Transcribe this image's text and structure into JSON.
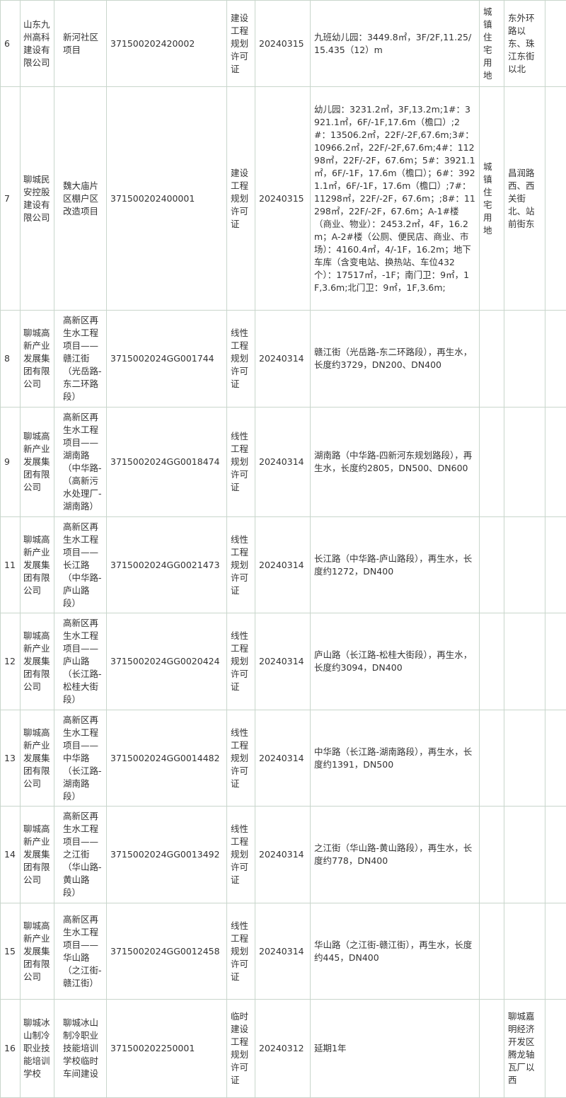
{
  "table": {
    "rows": [
      {
        "no": "6",
        "company": "山东九州高科建设有限公司",
        "project": "新河社区项目",
        "permit_no": "371500202420002",
        "permit_type": "建设工程规划许可证",
        "date": "20240315",
        "content": "九班幼儿园：3449.8㎡，3F/2F,11.25/15.435（12）m",
        "land_use": "城镇住宅用地",
        "location": "东外环路以东、珠江东街以北"
      },
      {
        "no": "7",
        "company": "聊城民安控股建设有限公司",
        "project": "魏大庙片区棚户区改造项目",
        "permit_no": "371500202400001",
        "permit_type": "建设工程规划许可证",
        "date": "20240315",
        "content": "幼儿园：3231.2㎡，3F,13.2m;1#：3921.1㎡，6F/-1F,17.6m（檐口）;2#：13506.2㎡，22F/-2F,67.6m;3#：10966.2㎡，22F/-2F,67.6m;4#：11298㎡，22F/-2F，67.6m；5#：3921.1㎡，6F/-1F，17.6m（檐口）；6#：3921.1㎡，6F/-1F，17.6m（檐口）;7#：11298㎡，22F/-2F，67.6m；;8#：11298㎡，22F/-2F，67.6m；A-1#楼（商业、物业）：2453.2㎡，4F，16.2m；A-2#楼（公厕、便民店、商业、市场）：4160.4㎡，4/-1F，16.2m；地下车库（含变电站、换热站、车位432个）：17517㎡，-1F；南门卫：9㎡，1F,3.6m;北门卫：9㎡，1F,3.6m;",
        "land_use": "城镇住宅用地",
        "location": "昌润路西、西关街北、站前街东"
      },
      {
        "no": "8",
        "company": "聊城高新产业发展集团有限公司",
        "project": "高新区再生水工程项目——赣江街（光岳路-东二环路段）",
        "permit_no": "3715002024GG001744",
        "permit_type": "线性工程规划许可证",
        "date": "20240314",
        "content": "赣江街（光岳路-东二环路段），再生水，长度约3729，DN200、DN400"
      },
      {
        "no": "9",
        "company": "聊城高新产业发展集团有限公司",
        "project": "高新区再生水工程项目——湖南路（中华路-（高新污水处理厂-湖南路）",
        "permit_no": "3715002024GG0018474",
        "permit_type": "线性工程规划许可证",
        "date": "20240314",
        "content": "湖南路（中华路-四新河东规划路段），再生水，长度约2805，DN500、DN600"
      },
      {
        "no": "11",
        "company": "聊城高新产业发展集团有限公司",
        "project": "高新区再生水工程项目——长江路（中华路-庐山路段）",
        "permit_no": "3715002024GG0021473",
        "permit_type": "线性工程规划许可证",
        "date": "20240314",
        "content": "长江路（中华路-庐山路段），再生水，长度约1272，DN400"
      },
      {
        "no": "12",
        "company": "聊城高新产业发展集团有限公司",
        "project": "高新区再生水工程项目——庐山路（长江路-松桂大街段）",
        "permit_no": "3715002024GG0020424",
        "permit_type": "线性工程规划许可证",
        "date": "20240314",
        "content": "庐山路（长江路-松桂大街段），再生水，长度约3094，DN400"
      },
      {
        "no": "13",
        "company": "聊城高新产业发展集团有限公司",
        "project": "高新区再生水工程项目——中华路（长江路-湖南路段）",
        "permit_no": "3715002024GG0014482",
        "permit_type": "线性工程规划许可证",
        "date": "20240314",
        "content": "中华路（长江路-湖南路段），再生水，长度约1391，DN500"
      },
      {
        "no": "14",
        "company": "聊城高新产业发展集团有限公司",
        "project": "高新区再生水工程项目——之江街（华山路-黄山路段）",
        "permit_no": "3715002024GG0013492",
        "permit_type": "线性工程规划许可证",
        "date": "20240314",
        "content": "之江街（华山路-黄山路段），再生水，长度约778，DN400"
      },
      {
        "no": "15",
        "company": "聊城高新产业发展集团有限公司",
        "project": "高新区再生水工程项目——华山路（之江街-赣江街）",
        "permit_no": "3715002024GG0012458",
        "permit_type": "线性工程规划许可证",
        "date": "20240314",
        "content": "华山路（之江街-赣江街），再生水，长度约445，DN400"
      },
      {
        "no": "16",
        "company": "聊城冰山制冷职业技能培训学校",
        "project": "聊城冰山制冷职业技能培训学校临时车间建设",
        "permit_no": "371500202250001",
        "permit_type": "临时建设工程规划许可证",
        "date": "20240312",
        "content": "延期1年",
        "location": "聊城嘉明经济开发区腾龙轴瓦厂以西"
      }
    ]
  }
}
